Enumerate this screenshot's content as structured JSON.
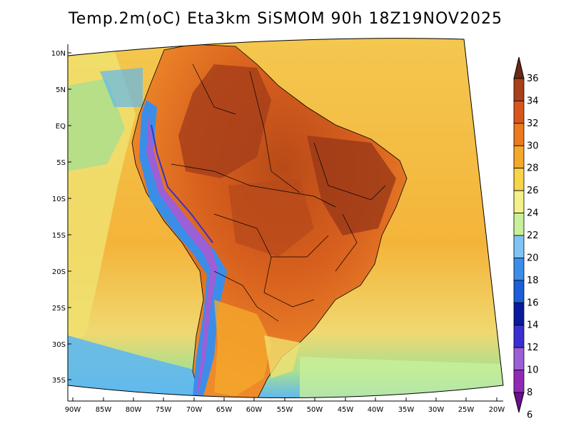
{
  "title": "Temp.2m(oC) Eta3km SiSMOM 90h 18Z19NOV2025",
  "map": {
    "region": "South America",
    "lat_labels": [
      "10N",
      "5N",
      "EQ",
      "5S",
      "10S",
      "15S",
      "20S",
      "25S",
      "30S",
      "35S"
    ],
    "lon_labels": [
      "90W",
      "85W",
      "80W",
      "75W",
      "70W",
      "65W",
      "60W",
      "55W",
      "50W",
      "45W",
      "40W",
      "35W",
      "30W",
      "25W",
      "20W"
    ]
  },
  "colorbar": {
    "unit": "oC",
    "min": 6,
    "max": 36,
    "labels": [
      "6",
      "8",
      "10",
      "12",
      "14",
      "16",
      "18",
      "20",
      "22",
      "24",
      "26",
      "28",
      "30",
      "32",
      "34",
      "36"
    ],
    "colors": [
      "#6a0f8e",
      "#8f2bb5",
      "#9b5fd6",
      "#3a2fd0",
      "#0a1a9c",
      "#1a5fd8",
      "#3b8ee8",
      "#7fc4f4",
      "#c8f09a",
      "#f4f08a",
      "#f8d44a",
      "#f4a82c",
      "#ec7a1e",
      "#d8561c",
      "#a8401a",
      "#6a2a14"
    ]
  }
}
